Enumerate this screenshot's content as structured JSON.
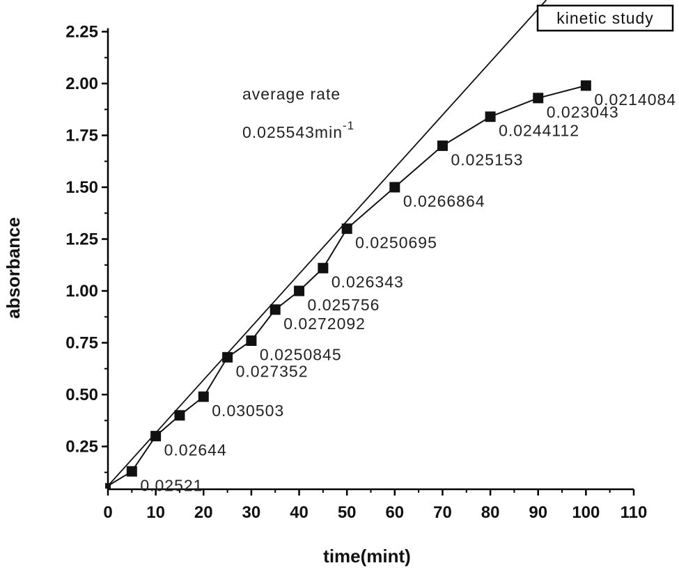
{
  "chart_data": {
    "type": "line",
    "xlabel": "time(mint)",
    "ylabel": "absorbance",
    "xlim": [
      0,
      110
    ],
    "ylim": [
      0,
      2.25
    ],
    "x_ticks": [
      "0",
      "10",
      "20",
      "30",
      "40",
      "50",
      "60",
      "70",
      "80",
      "90",
      "100",
      "110"
    ],
    "y_ticks": [
      "0.25",
      "0.50",
      "0.75",
      "1.00",
      "1.25",
      "1.50",
      "1.75",
      "2.00",
      "2.25"
    ],
    "legend": {
      "label": "kinetic study",
      "position": "top-right"
    },
    "annotation": {
      "line1": "average rate",
      "line2": "0.025543min",
      "line2_superscript": "-1"
    },
    "series": [
      {
        "x": [
          0,
          5,
          10,
          15,
          20,
          25,
          30,
          35,
          40,
          45,
          50,
          60,
          70,
          80,
          90,
          100
        ],
        "values": [
          0.06,
          0.13,
          0.3,
          0.4,
          0.49,
          0.68,
          0.76,
          0.91,
          1.0,
          1.11,
          1.3,
          1.5,
          1.7,
          1.84,
          1.93,
          1.99
        ],
        "point_labels": [
          "",
          "0.02521",
          "0.02644",
          "",
          "0.030503",
          "0.027352",
          "0.0250845",
          "0.0272092",
          "0.025756",
          "0.026343",
          "0.0250695",
          "0.0266864",
          "0.025153",
          "0.0244112",
          "0.023043",
          "0.0214084"
        ]
      }
    ],
    "fit_line": {
      "x": [
        0,
        110
      ],
      "values": [
        0.06,
        2.87
      ]
    }
  }
}
